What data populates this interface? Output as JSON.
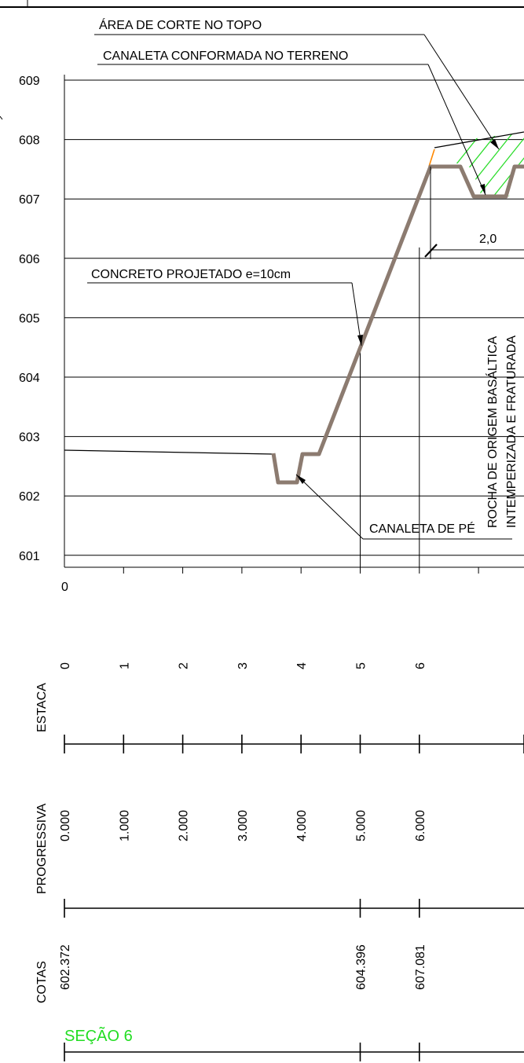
{
  "section_title": "SEÇÃO 6",
  "colors": {
    "ground_line": "#000000",
    "grid": "#000000",
    "concrete": "#8c7b70",
    "hatch": "#2bdc2b",
    "title": "#22dd22",
    "orange_accent": "#ff8800"
  },
  "profile": {
    "y_axis_values": [
      609,
      608,
      607,
      606,
      605,
      604,
      603,
      602,
      601
    ],
    "x_origin_label": "0",
    "x_range": [
      0,
      7.7
    ],
    "y_range": [
      600.4,
      609.4
    ]
  },
  "annotations": {
    "cut_area": "ÁREA DE CORTE NO TOPO",
    "channel_terrain": "CANALETA CONFORMADA NO TERRENO",
    "shotcrete": "CONCRETO PROJETADO e=10cm",
    "foot_channel": "CANALETA DE PÉ",
    "dimension": "2,0",
    "rock_line1": "ROCHA DE ORIGEM BASÁLTICA",
    "rock_line2": "INTEMPERIZADA E FRATURADA"
  },
  "table": {
    "estaca_label": "ESTACA",
    "estaca_values": [
      "0",
      "1",
      "2",
      "3",
      "4",
      "5",
      "6"
    ],
    "progressiva_label": "PROGRESSIVA",
    "progressiva_values": [
      "0.000",
      "1.000",
      "2.000",
      "3.000",
      "4.000",
      "5.000",
      "6.000"
    ],
    "cotas_label": "COTAS",
    "cotas_values": [
      {
        "estaca": 0,
        "value": "602.372"
      },
      {
        "estaca": 5,
        "value": "604.396"
      },
      {
        "estaca": 6,
        "value": "607.081"
      }
    ]
  }
}
